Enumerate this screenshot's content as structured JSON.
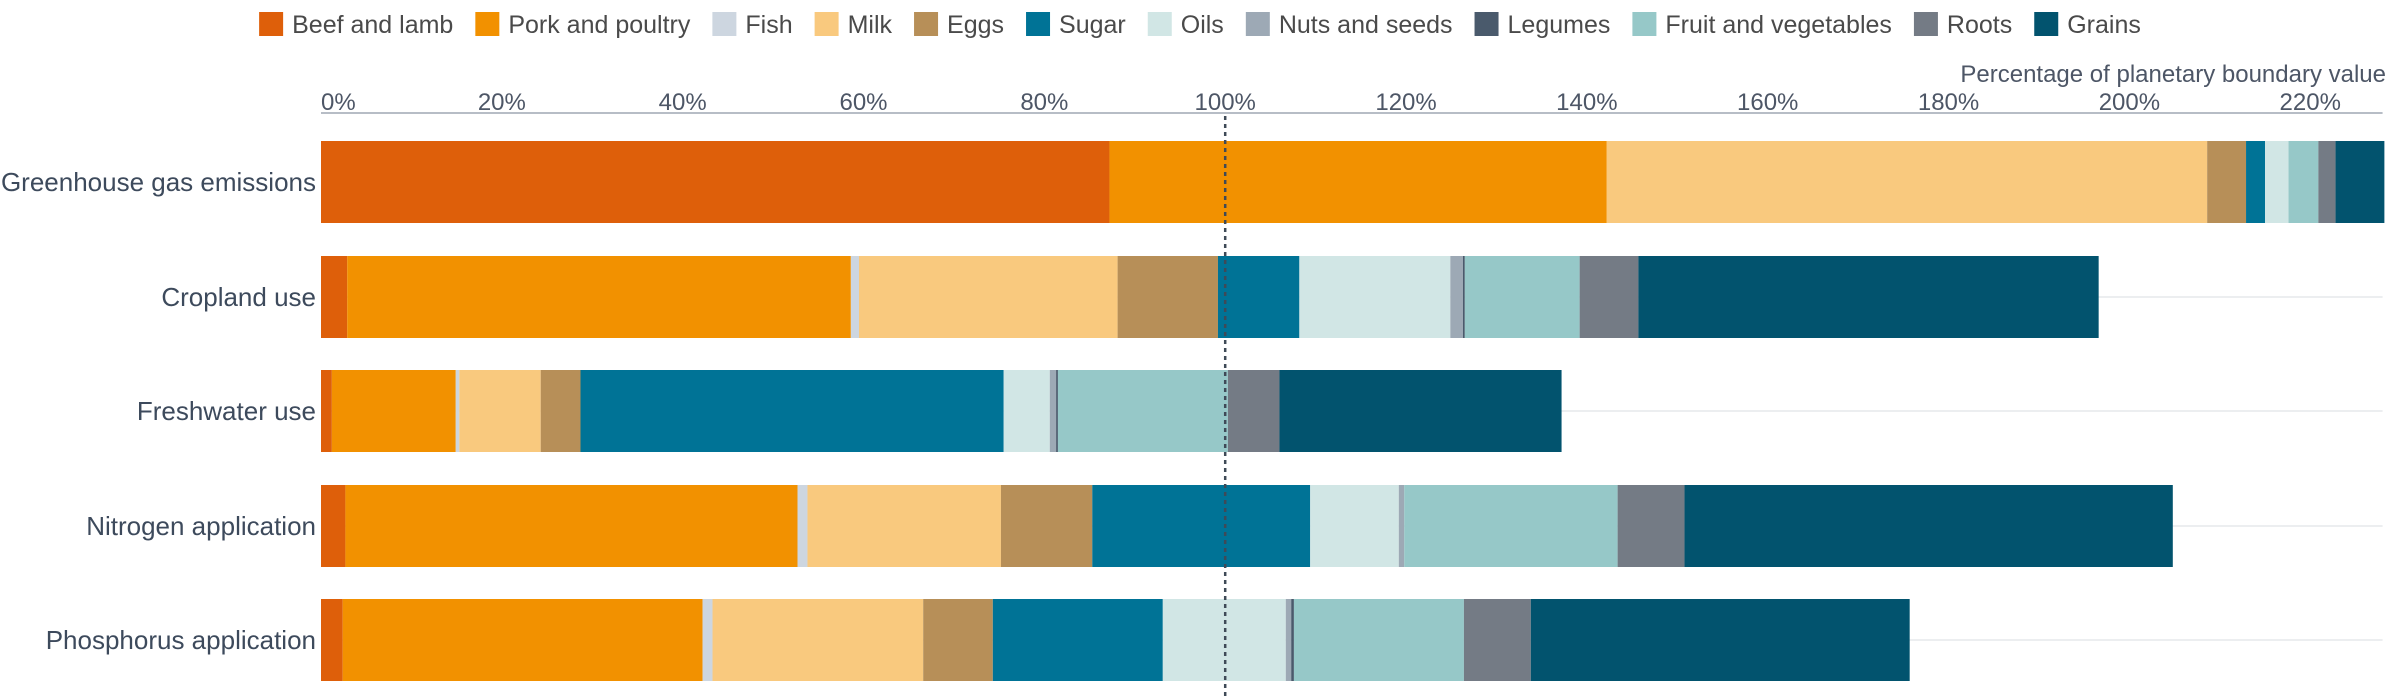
{
  "chart_data": {
    "type": "bar",
    "orientation": "horizontal",
    "stacked": true,
    "xlabel": "Percentage of planetary boundary value",
    "xlim": [
      0,
      228
    ],
    "x_ticks": [
      0,
      20,
      40,
      60,
      80,
      100,
      120,
      140,
      160,
      180,
      200,
      220
    ],
    "x_tick_labels": [
      "0%",
      "20%",
      "40%",
      "60%",
      "80%",
      "100%",
      "120%",
      "140%",
      "160%",
      "180%",
      "200%",
      "220%"
    ],
    "reference_line": 100,
    "legend_position": "top",
    "grid": "horizontal row lines",
    "categories": [
      "Greenhouse gas emissions",
      "Cropland use",
      "Freshwater use",
      "Nitrogen application",
      "Phosphorus application"
    ],
    "series": [
      {
        "name": "Beef and lamb",
        "color": "#de5f0a",
        "values": [
          87.2,
          2.9,
          1.2,
          2.7,
          2.4
        ]
      },
      {
        "name": "Pork and poultry",
        "color": "#f29100",
        "values": [
          55.0,
          55.7,
          13.7,
          50.0,
          39.8
        ]
      },
      {
        "name": "Fish",
        "color": "#cdd6e0",
        "values": [
          0,
          0.9,
          0.4,
          1.1,
          1.1
        ]
      },
      {
        "name": "Milk",
        "color": "#f9c97e",
        "values": [
          66.4,
          28.6,
          9.0,
          21.4,
          23.3
        ]
      },
      {
        "name": "Eggs",
        "color": "#b78f58",
        "values": [
          4.3,
          11.1,
          4.4,
          10.1,
          7.7
        ]
      },
      {
        "name": "Sugar",
        "color": "#007396",
        "values": [
          2.1,
          9.0,
          46.8,
          24.1,
          18.8
        ]
      },
      {
        "name": "Oils",
        "color": "#d1e6e5",
        "values": [
          2.6,
          16.7,
          5.1,
          9.8,
          13.6
        ]
      },
      {
        "name": "Nuts and seeds",
        "color": "#9da9b5",
        "values": [
          0,
          1.4,
          0.7,
          0.6,
          0.6
        ]
      },
      {
        "name": "Legumes",
        "color": "#4a5a6c",
        "values": [
          0,
          0.2,
          0.2,
          0,
          0.3
        ]
      },
      {
        "name": "Fruit and vegetables",
        "color": "#96c8c8",
        "values": [
          3.3,
          12.7,
          18.8,
          23.6,
          18.8
        ]
      },
      {
        "name": "Roots",
        "color": "#747b85",
        "values": [
          1.9,
          6.5,
          5.7,
          7.4,
          7.4
        ]
      },
      {
        "name": "Grains",
        "color": "#02536e",
        "values": [
          5.4,
          50.9,
          31.2,
          54.0,
          41.9
        ]
      }
    ]
  }
}
